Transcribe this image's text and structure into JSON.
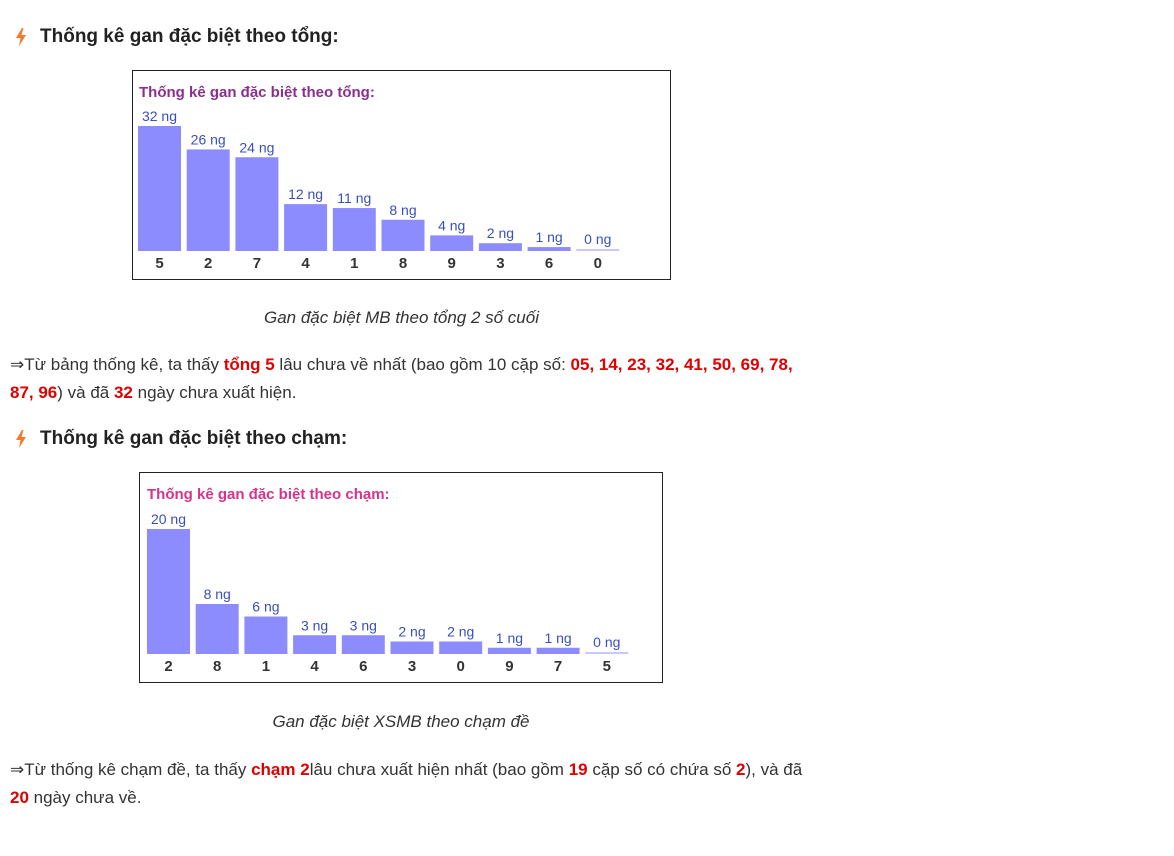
{
  "section1": {
    "heading": "Thống kê gan đặc biệt theo tổng:",
    "caption": "Gan đặc biệt MB theo tổng 2 số cuối",
    "para": {
      "arrow": "⇒",
      "t1": "Từ bảng thống kê, ta thấy ",
      "h1": "tổng 5",
      "t2": " lâu chưa về nhất (bao gồm 10 cặp số: ",
      "h2": "05, 14, 23, 32, 41, 50, 69, 78, 87, 96",
      "t3": ") và đã ",
      "h3": "32",
      "t4": " ngày chưa xuất hiện."
    }
  },
  "section2": {
    "heading": "Thống kê gan đặc biệt theo chạm:",
    "caption": "Gan đặc biệt XSMB theo chạm đề",
    "para": {
      "arrow": "⇒",
      "t1": "Từ thống kê chạm đề, ta thấy ",
      "h1": "chạm 2",
      "t2": "lâu chưa xuất hiện nhất (bao gồm ",
      "h2": "19",
      "t3": " cặp số có chứa số ",
      "h3": "2",
      "t4": "), và đã ",
      "h4": "20",
      "t5": " ngày chưa về."
    }
  },
  "colors": {
    "bar": "#8c8cff",
    "bar_label": "#3a4fbf",
    "title1": "#8b2f8f",
    "title2": "#d6338a",
    "highlight": "#e00000",
    "bolt": "#f07a2a"
  },
  "chart_data": [
    {
      "type": "bar",
      "title": "Thống kê gan đặc biệt theo tổng:",
      "categories": [
        "5",
        "2",
        "7",
        "4",
        "1",
        "8",
        "9",
        "3",
        "6",
        "0"
      ],
      "values": [
        32,
        26,
        24,
        12,
        11,
        8,
        4,
        2,
        1,
        0
      ],
      "value_labels": [
        "32 ng",
        "26 ng",
        "24 ng",
        "12 ng",
        "11 ng",
        "8 ng",
        "4 ng",
        "2 ng",
        "1 ng",
        "0 ng"
      ],
      "ylim": [
        0,
        32
      ]
    },
    {
      "type": "bar",
      "title": "Thống kê gan đặc biệt theo chạm:",
      "categories": [
        "2",
        "8",
        "1",
        "4",
        "6",
        "3",
        "0",
        "9",
        "7",
        "5"
      ],
      "values": [
        20,
        8,
        6,
        3,
        3,
        2,
        2,
        1,
        1,
        0
      ],
      "value_labels": [
        "20 ng",
        "8 ng",
        "6 ng",
        "3 ng",
        "3 ng",
        "2 ng",
        "2 ng",
        "1 ng",
        "1 ng",
        "0 ng"
      ],
      "ylim": [
        0,
        20
      ]
    }
  ]
}
